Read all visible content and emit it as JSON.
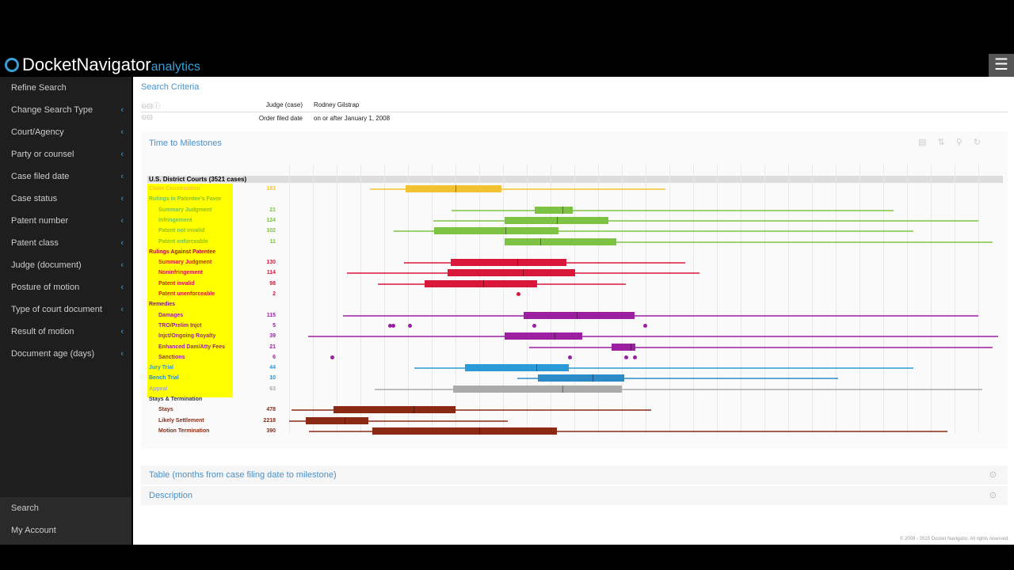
{
  "app": {
    "logo_main": "DocketNavigator",
    "logo_sub": "analytics",
    "menu_icon": "hamburger-icon"
  },
  "sidebar": {
    "items": [
      {
        "label": "Refine Search",
        "chevron": false
      },
      {
        "label": "Change Search Type",
        "chevron": true
      },
      {
        "label": "Court/Agency",
        "chevron": true
      },
      {
        "label": "Party or counsel",
        "chevron": true
      },
      {
        "label": "Case filed date",
        "chevron": true
      },
      {
        "label": "Case status",
        "chevron": true
      },
      {
        "label": "Patent number",
        "chevron": true
      },
      {
        "label": "Patent class",
        "chevron": true
      },
      {
        "label": "Judge (document)",
        "chevron": true
      },
      {
        "label": "Posture of motion",
        "chevron": true
      },
      {
        "label": "Type of court document",
        "chevron": true
      },
      {
        "label": "Result of motion",
        "chevron": true
      },
      {
        "label": "Document age (days)",
        "chevron": true
      }
    ],
    "bottom": [
      {
        "label": "Search"
      },
      {
        "label": "My Account"
      }
    ]
  },
  "criteria": {
    "title": "Search Criteria",
    "rows": [
      {
        "key": "Judge (case)",
        "value": "Rodney Gilstrap"
      },
      {
        "key": "Order filed date",
        "value": "on or after January 1, 2008"
      }
    ]
  },
  "chart_panel": {
    "title": "Time to Milestones",
    "group": "U.S. District Courts (3521 cases)"
  },
  "chart_data": {
    "type": "boxplot",
    "orientation": "horizontal",
    "xlim": [
      0,
      100
    ],
    "grid": true,
    "rows": [
      {
        "label": "Claim Construction",
        "count": "183",
        "color": "#f3c233",
        "stats": [
          11.3,
          16.3,
          23.3,
          29.8,
          52.8
        ]
      },
      {
        "label": "Rulings in Patentee's Favor",
        "count": "",
        "color": "#7dc242",
        "header": true
      },
      {
        "label": "Summary Judgment",
        "count": "21",
        "color": "#7dc242",
        "indent": true,
        "stats": [
          22.8,
          34.4,
          38.3,
          39.8,
          84.8
        ]
      },
      {
        "label": "Infringement",
        "count": "124",
        "color": "#7dc242",
        "indent": true,
        "stats": [
          20.2,
          30.2,
          37.6,
          44.8,
          96.7
        ]
      },
      {
        "label": "Patent not invalid",
        "count": "102",
        "color": "#7dc242",
        "indent": true,
        "stats": [
          14.7,
          20.3,
          30.3,
          37.8,
          87.6
        ]
      },
      {
        "label": "Patent enforceable",
        "count": "11",
        "color": "#7dc242",
        "indent": true,
        "stats": [
          30.2,
          30.2,
          35.2,
          45.9,
          98.7
        ]
      },
      {
        "label": "Rulings Against Patentee",
        "count": "",
        "color": "#b3122e",
        "header": true
      },
      {
        "label": "Summary Judgment",
        "count": "130",
        "color": "#d8173a",
        "indent": true,
        "stats": [
          16.1,
          22.7,
          32,
          38.9,
          55.6
        ]
      },
      {
        "label": "Noninfringement",
        "count": "114",
        "color": "#d8173a",
        "indent": true,
        "stats": [
          8.1,
          22.2,
          32.8,
          40.1,
          57.6
        ]
      },
      {
        "label": "Patent invalid",
        "count": "98",
        "color": "#d8173a",
        "indent": true,
        "stats": [
          12.4,
          19,
          27.2,
          34.8,
          47.2
        ]
      },
      {
        "label": "Patent unenforceable",
        "count": "2",
        "color": "#d8173a",
        "indent": true,
        "points": [
          32.1
        ]
      },
      {
        "label": "Remedies",
        "count": "",
        "color": "#7a1a7e",
        "header": true
      },
      {
        "label": "Damages",
        "count": "115",
        "color": "#9b1fa0",
        "indent": true,
        "stats": [
          7.6,
          32.9,
          40.3,
          48.4,
          96.7
        ]
      },
      {
        "label": "TRO/Prelim Injct",
        "count": "5",
        "color": "#9b1fa0",
        "indent": true,
        "points": [
          14.1,
          14.6,
          16.9,
          34.3,
          49.9
        ]
      },
      {
        "label": "Injct/Ongoing Royalty",
        "count": "39",
        "color": "#9b1fa0",
        "indent": true,
        "stats": [
          2.7,
          30.2,
          37.2,
          41.1,
          99.4
        ]
      },
      {
        "label": "Enhanced Dam/Atty Fees",
        "count": "21",
        "color": "#9b1fa0",
        "indent": true,
        "stats": [
          33.7,
          45.2,
          47.9,
          48.6,
          98.7
        ]
      },
      {
        "label": "Sanctions",
        "count": "6",
        "color": "#9b1fa0",
        "indent": true,
        "points": [
          6,
          39.3,
          47.2,
          48.4
        ]
      },
      {
        "label": "Jury Trial",
        "count": "44",
        "color": "#2a9bd6",
        "stats": [
          17.6,
          24.7,
          34.7,
          39.2,
          87.6
        ]
      },
      {
        "label": "Bench Trial",
        "count": "10",
        "color": "#2a8bc6",
        "stats": [
          32,
          34.9,
          42.6,
          47,
          77
        ]
      },
      {
        "label": "Appeal",
        "count": "63",
        "color": "#aaaaaa",
        "stats": [
          12,
          23,
          38.3,
          46.7,
          97.2
        ]
      },
      {
        "label": "Stays & Termination",
        "count": "",
        "color": "#333333",
        "header": true
      },
      {
        "label": "Stays",
        "count": "478",
        "color": "#8b2a14",
        "indent": true,
        "stats": [
          0.3,
          6.2,
          17.4,
          23.3,
          50.8
        ]
      },
      {
        "label": "Likely Settlement",
        "count": "2218",
        "color": "#8b2a14",
        "indent": true,
        "stats": [
          0,
          2.3,
          7.8,
          11.1,
          30.7
        ]
      },
      {
        "label": "Motion Termination",
        "count": "390",
        "color": "#8b2a14",
        "indent": true,
        "stats": [
          2.8,
          11.7,
          26.7,
          37.6,
          92.3
        ]
      }
    ]
  },
  "sections": [
    {
      "label": "Table (months from case filing date to milestone)"
    },
    {
      "label": "Description"
    }
  ],
  "footer": "© 2009 - 2015 Docket Navigator. All rights reserved."
}
